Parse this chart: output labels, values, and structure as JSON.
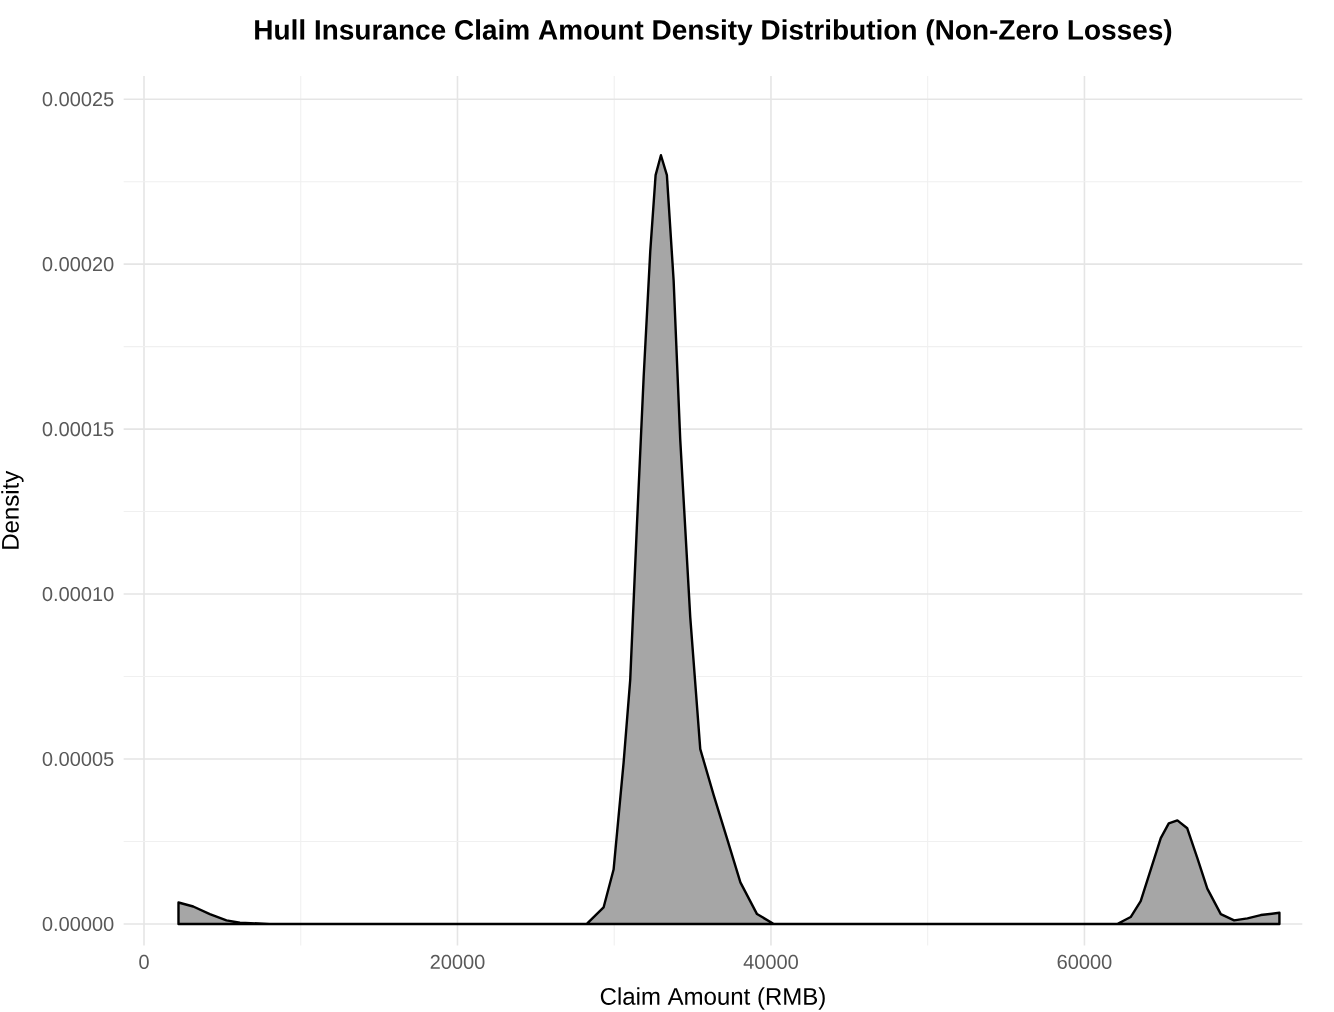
{
  "chart_data": {
    "type": "area",
    "title": "Hull Insurance Claim Amount Density Distribution (Non-Zero Losses)",
    "xlabel": "Claim Amount (RMB)",
    "ylabel": "Density",
    "xlim": [
      -1300,
      73900
    ],
    "ylim": [
      -6.5e-06,
      0.000257
    ],
    "xticks": [
      0,
      20000,
      40000,
      60000
    ],
    "yticks": [
      {
        "value": 0,
        "label": "0.00000"
      },
      {
        "value": 5e-05,
        "label": "0.00005"
      },
      {
        "value": 0.0001,
        "label": "0.00010"
      },
      {
        "value": 0.00015,
        "label": "0.00015"
      },
      {
        "value": 0.0002,
        "label": "0.00020"
      },
      {
        "value": 0.00025,
        "label": "0.00025"
      }
    ],
    "grid": true,
    "series": [
      {
        "color": "#a6a6a6",
        "x": [
          2200,
          3140,
          4200,
          5260,
          6120,
          8000,
          27000,
          28250,
          29320,
          29960,
          30600,
          31020,
          31440,
          31880,
          32300,
          32640,
          32980,
          33360,
          33790,
          34210,
          34850,
          35490,
          36350,
          37190,
          38050,
          39110,
          40180,
          50000,
          62090,
          62950,
          63590,
          64230,
          64870,
          65380,
          65930,
          66560,
          67200,
          67840,
          68700,
          69550,
          70400,
          71250,
          72440
        ],
        "values": [
          6.5e-06,
          5.3e-06,
          3e-06,
          1.1e-06,
          4e-07,
          0,
          0,
          0,
          5e-06,
          1.65e-05,
          4.9e-05,
          7.4e-05,
          0.00012,
          0.000166,
          0.000204,
          0.000227,
          0.000233,
          0.000227,
          0.000195,
          0.000147,
          9.3e-05,
          5.3e-05,
          3.9e-05,
          2.6e-05,
          1.26e-05,
          3e-06,
          0,
          0,
          0,
          2.1e-06,
          6.9e-06,
          1.65e-05,
          2.6e-05,
          3.05e-05,
          3.14e-05,
          2.9e-05,
          2e-05,
          1.07e-05,
          3e-06,
          1.1e-06,
          1.7e-06,
          2.7e-06,
          3.4e-06
        ]
      }
    ]
  }
}
